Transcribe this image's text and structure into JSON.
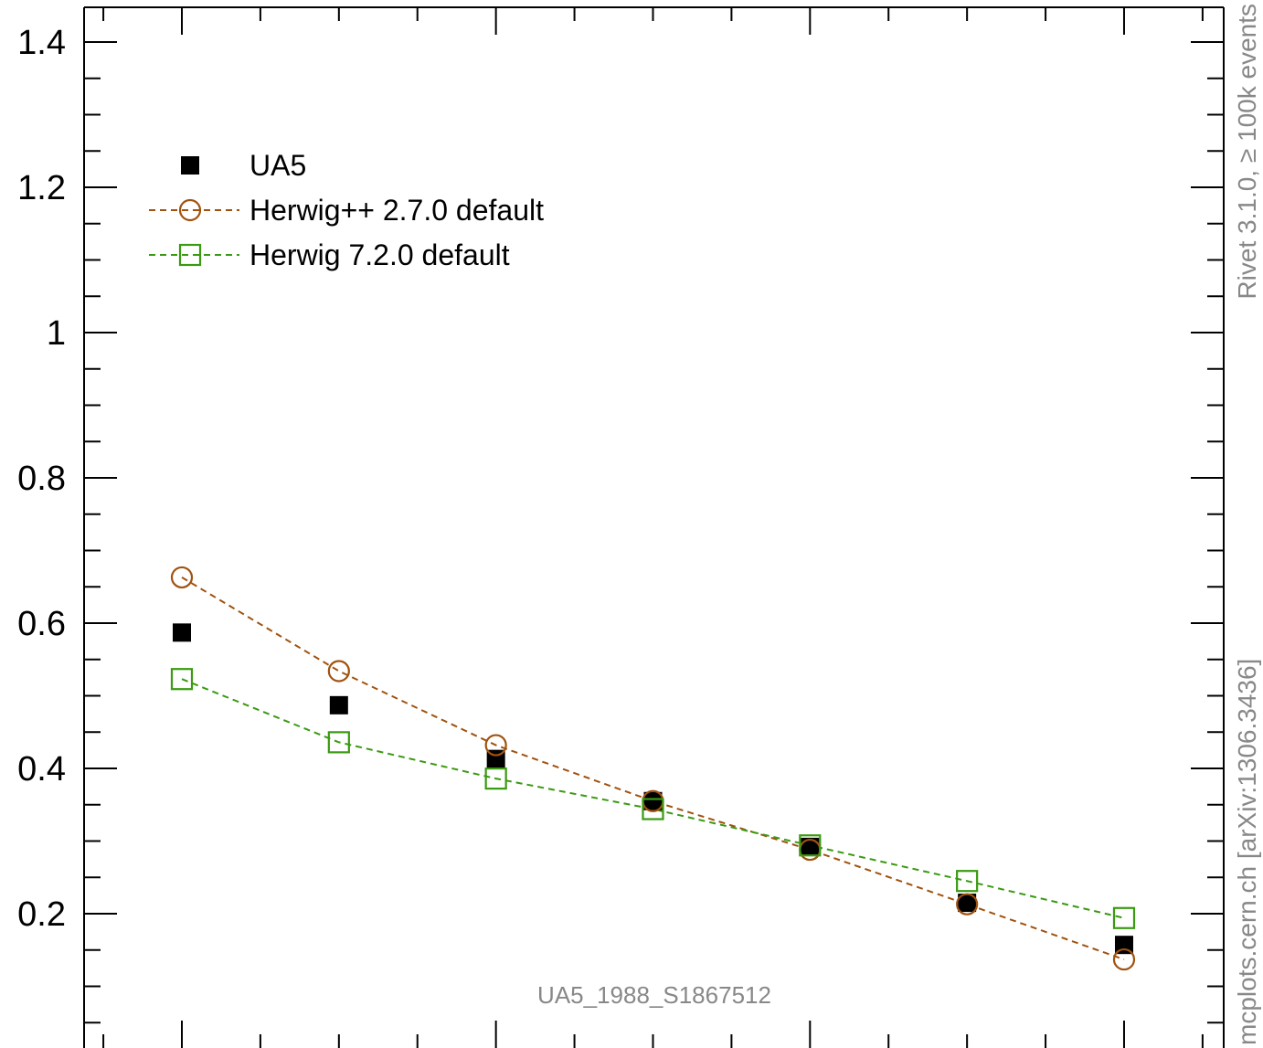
{
  "chart_data": {
    "type": "scatter",
    "title": "",
    "xlabel": "",
    "ylabel": "",
    "xlim": [
      0.5,
      7.5
    ],
    "ylim": [
      0.0,
      1.45
    ],
    "y_ticks": [
      0.2,
      0.4,
      0.6,
      0.8,
      1.0,
      1.2,
      1.4
    ],
    "y_tick_labels": [
      "0.2",
      "0.4",
      "0.6",
      "0.8",
      "1",
      "1.2",
      "1.4"
    ],
    "x": [
      1,
      2,
      3,
      4,
      5,
      6,
      7
    ],
    "grid": false,
    "legend_position": "top-left",
    "series": [
      {
        "name": "UA5",
        "marker": "filled-square",
        "color": "#000000",
        "line": false,
        "values": [
          0.587,
          0.487,
          0.413,
          0.355,
          0.292,
          0.215,
          0.157
        ]
      },
      {
        "name": "Herwig++ 2.7.0 default",
        "marker": "open-circle",
        "color": "#a0520f",
        "line": true,
        "values": [
          0.663,
          0.534,
          0.432,
          0.355,
          0.288,
          0.213,
          0.137
        ]
      },
      {
        "name": "Herwig 7.2.0 default",
        "marker": "open-square",
        "color": "#3a9a12",
        "line": true,
        "values": [
          0.523,
          0.436,
          0.386,
          0.344,
          0.294,
          0.245,
          0.194
        ]
      }
    ],
    "annotations": {
      "analysis_id": "UA5_1988_S1867512",
      "side_label_top": "Rivet 3.1.0, ≥ 100k events",
      "side_label_bottom": "mcplots.cern.ch [arXiv:1306.3436]"
    }
  }
}
